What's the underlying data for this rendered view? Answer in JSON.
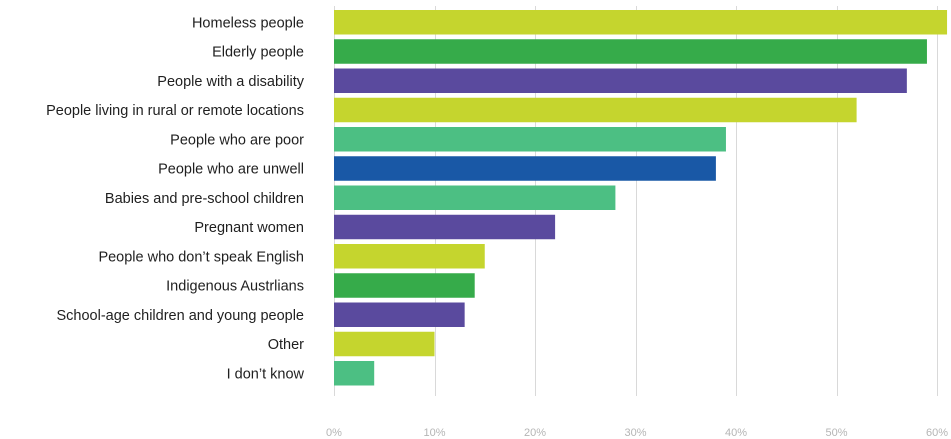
{
  "chart_data": {
    "type": "bar",
    "orientation": "horizontal",
    "title": "",
    "xlabel": "",
    "ylabel": "",
    "xlim": [
      0,
      60
    ],
    "grid": true,
    "legend": "none",
    "tick_values": [
      0,
      10,
      20,
      30,
      40,
      50,
      60
    ],
    "tick_labels": [
      "0%",
      "10%",
      "20%",
      "30%",
      "40%",
      "50%",
      "60%"
    ],
    "categories": [
      "Homeless people",
      "Elderly people",
      "People with a disability",
      "People living in rural or remote locations",
      "People who are poor",
      "People who are unwell",
      "Babies and pre-school children",
      "Pregnant women",
      "People who don’t speak English",
      "Indigenous Austrlians",
      "School-age children and young people",
      "Other",
      "I don’t know"
    ],
    "values": [
      61,
      59,
      57,
      52,
      39,
      38,
      28,
      22,
      15,
      14,
      13,
      10,
      4
    ],
    "bar_colors": [
      "#c5d52e",
      "#36ab4a",
      "#5a4a9e",
      "#c5d52e",
      "#4cbf83",
      "#1958a6",
      "#4cbf83",
      "#5a4a9e",
      "#c5d52e",
      "#36ab4a",
      "#5a4a9e",
      "#c5d52e",
      "#4cbf83"
    ]
  }
}
